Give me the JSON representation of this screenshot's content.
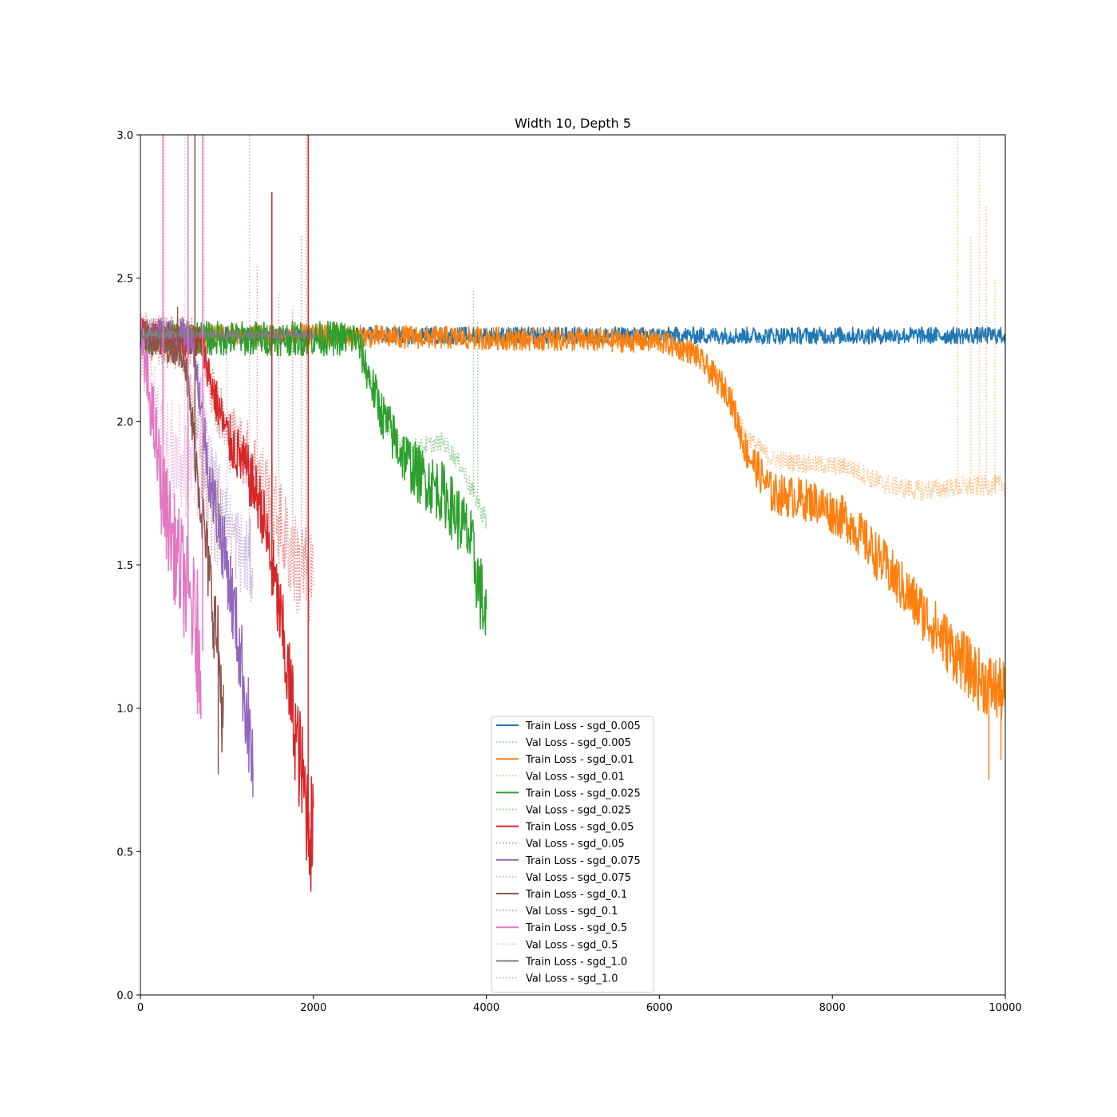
{
  "chart_data": {
    "type": "line",
    "title": "Width 10, Depth 5",
    "xlabel": "",
    "ylabel": "",
    "xlim": [
      0,
      10000
    ],
    "ylim": [
      0,
      3.0
    ],
    "xticks": [
      "0",
      "2000",
      "4000",
      "6000",
      "8000",
      "10000"
    ],
    "yticks": [
      "0.0",
      "0.5",
      "1.0",
      "1.5",
      "2.0",
      "2.5",
      "3.0"
    ],
    "grid": false,
    "legend_position": "lower-center",
    "series": [
      {
        "name": "Train Loss - sgd_0.005",
        "color": "#1f77b4",
        "style": "solid",
        "alpha": 1.0,
        "noise": 0.03,
        "points": [
          [
            0,
            2.3
          ],
          [
            10000,
            2.3
          ]
        ]
      },
      {
        "name": "Val Loss - sgd_0.005",
        "color": "#1f77b4",
        "style": "dotted",
        "alpha": 0.45,
        "noise": 0.005,
        "points": [
          [
            0,
            2.3
          ],
          [
            10000,
            2.3
          ]
        ]
      },
      {
        "name": "Train Loss - sgd_0.01",
        "color": "#ff7f0e",
        "style": "solid",
        "alpha": 1.0,
        "noise": 0.04,
        "points": [
          [
            0,
            2.3
          ],
          [
            2000,
            2.3
          ],
          [
            6000,
            2.28
          ],
          [
            6400,
            2.24
          ],
          [
            6800,
            2.1
          ],
          [
            7000,
            1.9
          ],
          [
            7300,
            1.75
          ],
          [
            7800,
            1.72
          ],
          [
            8200,
            1.65
          ],
          [
            8600,
            1.5
          ],
          [
            9000,
            1.35
          ],
          [
            9400,
            1.2
          ],
          [
            9700,
            1.1
          ],
          [
            10000,
            1.05
          ]
        ]
      },
      {
        "name": "Val Loss - sgd_0.01",
        "color": "#ff7f0e",
        "style": "dotted",
        "alpha": 0.5,
        "noise": 0.02,
        "points": [
          [
            0,
            2.3
          ],
          [
            2000,
            2.3
          ],
          [
            6000,
            2.28
          ],
          [
            6400,
            2.24
          ],
          [
            6800,
            2.1
          ],
          [
            7000,
            1.95
          ],
          [
            7300,
            1.87
          ],
          [
            7800,
            1.85
          ],
          [
            8200,
            1.84
          ],
          [
            8600,
            1.78
          ],
          [
            9000,
            1.76
          ],
          [
            9400,
            1.77
          ],
          [
            10000,
            1.78
          ]
        ]
      },
      {
        "name": "Train Loss - sgd_0.025",
        "color": "#2ca02c",
        "style": "solid",
        "alpha": 1.0,
        "noise": 0.06,
        "points": [
          [
            0,
            2.29
          ],
          [
            2500,
            2.29
          ],
          [
            2650,
            2.15
          ],
          [
            2800,
            2.02
          ],
          [
            3000,
            1.9
          ],
          [
            3200,
            1.82
          ],
          [
            3500,
            1.75
          ],
          [
            3800,
            1.6
          ],
          [
            4000,
            1.3
          ]
        ]
      },
      {
        "name": "Val Loss - sgd_0.025",
        "color": "#2ca02c",
        "style": "dotted",
        "alpha": 0.5,
        "noise": 0.02,
        "points": [
          [
            0,
            2.3
          ],
          [
            2500,
            2.3
          ],
          [
            2650,
            2.15
          ],
          [
            2800,
            2.0
          ],
          [
            3000,
            1.92
          ],
          [
            3200,
            1.91
          ],
          [
            3500,
            1.93
          ],
          [
            3700,
            1.85
          ],
          [
            3850,
            1.75
          ],
          [
            4000,
            1.65
          ]
        ]
      },
      {
        "name": "Train Loss - sgd_0.05",
        "color": "#d62728",
        "style": "solid",
        "alpha": 1.0,
        "noise": 0.06,
        "points": [
          [
            0,
            2.3
          ],
          [
            700,
            2.28
          ],
          [
            850,
            2.1
          ],
          [
            1000,
            1.95
          ],
          [
            1200,
            1.85
          ],
          [
            1400,
            1.7
          ],
          [
            1600,
            1.35
          ],
          [
            1800,
            0.9
          ],
          [
            1950,
            0.6
          ],
          [
            2000,
            0.55
          ]
        ]
      },
      {
        "name": "Val Loss - sgd_0.05",
        "color": "#d62728",
        "style": "dotted",
        "alpha": 0.5,
        "noise": 0.08,
        "points": [
          [
            0,
            2.3
          ],
          [
            700,
            2.28
          ],
          [
            850,
            2.1
          ],
          [
            1000,
            1.95
          ],
          [
            1200,
            1.9
          ],
          [
            1400,
            1.8
          ],
          [
            1600,
            1.65
          ],
          [
            1800,
            1.5
          ],
          [
            2000,
            1.45
          ]
        ]
      },
      {
        "name": "Train Loss - sgd_0.075",
        "color": "#9467bd",
        "style": "solid",
        "alpha": 1.0,
        "noise": 0.06,
        "points": [
          [
            0,
            2.3
          ],
          [
            600,
            2.3
          ],
          [
            800,
            1.8
          ],
          [
            1000,
            1.5
          ],
          [
            1150,
            1.2
          ],
          [
            1300,
            0.8
          ]
        ]
      },
      {
        "name": "Val Loss - sgd_0.075",
        "color": "#9467bd",
        "style": "dotted",
        "alpha": 0.5,
        "noise": 0.07,
        "points": [
          [
            0,
            2.3
          ],
          [
            600,
            2.3
          ],
          [
            800,
            1.85
          ],
          [
            1000,
            1.65
          ],
          [
            1150,
            1.55
          ],
          [
            1300,
            1.5
          ]
        ]
      },
      {
        "name": "Train Loss - sgd_0.1",
        "color": "#8c564b",
        "style": "solid",
        "alpha": 1.0,
        "noise": 0.06,
        "points": [
          [
            0,
            2.3
          ],
          [
            500,
            2.25
          ],
          [
            650,
            1.85
          ],
          [
            800,
            1.45
          ],
          [
            900,
            1.2
          ],
          [
            960,
            0.95
          ]
        ]
      },
      {
        "name": "Val Loss - sgd_0.1",
        "color": "#8c564b",
        "style": "dotted",
        "alpha": 0.5,
        "noise": 0.08,
        "points": [
          [
            0,
            2.3
          ],
          [
            500,
            2.25
          ],
          [
            650,
            1.95
          ],
          [
            800,
            1.7
          ],
          [
            960,
            1.6
          ]
        ]
      },
      {
        "name": "Train Loss - sgd_0.5",
        "color": "#e377c2",
        "style": "solid",
        "alpha": 1.0,
        "noise": 0.09,
        "points": [
          [
            0,
            2.3
          ],
          [
            150,
            2.0
          ],
          [
            250,
            1.75
          ],
          [
            400,
            1.55
          ],
          [
            550,
            1.4
          ],
          [
            700,
            1.2
          ]
        ]
      },
      {
        "name": "Val Loss - sgd_0.5",
        "color": "#e377c2",
        "style": "dotted",
        "alpha": 0.5,
        "noise": 0.12,
        "points": [
          [
            0,
            2.3
          ],
          [
            150,
            2.05
          ],
          [
            300,
            1.9
          ],
          [
            500,
            1.85
          ],
          [
            700,
            1.85
          ]
        ]
      },
      {
        "name": "Train Loss - sgd_1.0",
        "color": "#7f7f7f",
        "style": "solid",
        "alpha": 1.0,
        "noise": 0.015,
        "points": [
          [
            0,
            2.303
          ],
          [
            2000,
            2.303
          ]
        ]
      },
      {
        "name": "Val Loss - sgd_1.0",
        "color": "#7f7f7f",
        "style": "dotted",
        "alpha": 0.45,
        "noise": 0.006,
        "points": [
          [
            0,
            2.303
          ],
          [
            2000,
            2.303
          ]
        ]
      }
    ],
    "spikes": [
      {
        "series": 3,
        "x": [
          9450,
          9700,
          9780,
          9600,
          9880
        ],
        "y": [
          3.0,
          3.0,
          2.75,
          2.65,
          2.5
        ]
      },
      {
        "series": 2,
        "x": [
          9810,
          9950
        ],
        "y": [
          0.75,
          0.82
        ]
      },
      {
        "series": 5,
        "x": [
          3850,
          3900
        ],
        "y": [
          2.46,
          2.35
        ]
      },
      {
        "series": 7,
        "x": [
          1920,
          1350,
          1600,
          1760,
          1860
        ],
        "y": [
          3.0,
          2.55,
          2.45,
          2.4,
          2.65
        ]
      },
      {
        "series": 6,
        "x": [
          1520,
          1940,
          1970
        ],
        "y": [
          2.8,
          3.0,
          0.36
        ]
      },
      {
        "series": 9,
        "x": [
          1260,
          1000
        ],
        "y": [
          3.0,
          2.3
        ]
      },
      {
        "series": 8,
        "x": [
          1300
        ],
        "y": [
          0.69
        ]
      },
      {
        "series": 10,
        "x": [
          630,
          430,
          900
        ],
        "y": [
          3.0,
          2.4,
          0.77
        ]
      },
      {
        "series": 12,
        "x": [
          260,
          550,
          720,
          660
        ],
        "y": [
          3.0,
          3.0,
          3.0,
          0.98
        ]
      },
      {
        "series": 13,
        "x": [
          280,
          510,
          740
        ],
        "y": [
          3.0,
          3.0,
          3.0
        ]
      }
    ]
  }
}
